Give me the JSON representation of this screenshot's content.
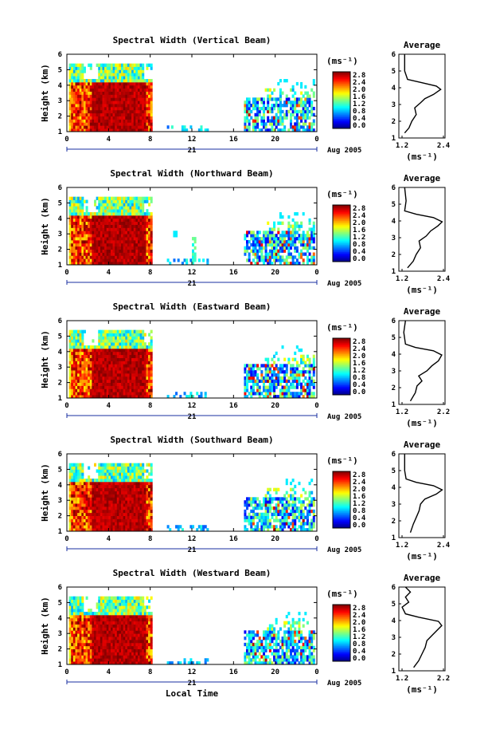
{
  "chart_data": [
    {
      "type": "heatmap",
      "title": "Spectral Width (Vertical Beam)",
      "ylabel": "Height (km)",
      "x_ticks": [
        "0",
        "4",
        "8",
        "12",
        "16",
        "20",
        "0"
      ],
      "y_ticks": [
        "1",
        "2",
        "3",
        "4",
        "5",
        "6"
      ],
      "xlim": [
        0,
        24
      ],
      "ylim": [
        1,
        6
      ],
      "date_day": "21",
      "date_label": "Aug 2005",
      "colorbar": {
        "unit_label": "(ms⁻¹)",
        "ticks": [
          "0.0",
          "0.4",
          "0.8",
          "1.2",
          "1.6",
          "2.0",
          "2.4",
          "2.8"
        ]
      },
      "average": {
        "title": "Average",
        "xlabel": "(ms⁻¹)",
        "x_ticks": [
          "1.2",
          "2.4"
        ],
        "xlim": [
          1.0,
          2.6
        ],
        "y_ticks": [
          "1",
          "2",
          "3",
          "4",
          "5",
          "6"
        ],
        "profile": [
          [
            1.2,
            1.3
          ],
          [
            1.35,
            1.6
          ],
          [
            1.45,
            2.0
          ],
          [
            1.6,
            2.4
          ],
          [
            1.55,
            2.8
          ],
          [
            1.75,
            3.1
          ],
          [
            1.9,
            3.35
          ],
          [
            2.2,
            3.6
          ],
          [
            2.45,
            3.9
          ],
          [
            2.3,
            4.1
          ],
          [
            1.8,
            4.3
          ],
          [
            1.3,
            4.5
          ],
          [
            1.2,
            5.0
          ],
          [
            1.2,
            6.0
          ]
        ]
      }
    },
    {
      "type": "heatmap",
      "title": "Spectral Width (Northward Beam)",
      "ylabel": "Height (km)",
      "x_ticks": [
        "0",
        "4",
        "8",
        "12",
        "16",
        "20",
        "0"
      ],
      "y_ticks": [
        "1",
        "2",
        "3",
        "4",
        "5",
        "6"
      ],
      "xlim": [
        0,
        24
      ],
      "ylim": [
        1,
        6
      ],
      "date_day": "21",
      "date_label": "Aug 2005",
      "colorbar": {
        "unit_label": "(ms⁻¹)",
        "ticks": [
          "0.0",
          "0.4",
          "0.8",
          "1.2",
          "1.6",
          "2.0",
          "2.4",
          "2.8"
        ]
      },
      "average": {
        "title": "Average",
        "xlabel": "(ms⁻¹)",
        "x_ticks": [
          "1.2",
          "2.4"
        ],
        "xlim": [
          1.0,
          2.6
        ],
        "y_ticks": [
          "1",
          "2",
          "3",
          "4",
          "5",
          "6"
        ],
        "profile": [
          [
            1.3,
            1.2
          ],
          [
            1.5,
            1.6
          ],
          [
            1.6,
            2.0
          ],
          [
            1.75,
            2.4
          ],
          [
            1.7,
            2.8
          ],
          [
            1.95,
            3.1
          ],
          [
            2.1,
            3.4
          ],
          [
            2.35,
            3.7
          ],
          [
            2.5,
            3.95
          ],
          [
            2.2,
            4.2
          ],
          [
            1.6,
            4.4
          ],
          [
            1.2,
            4.6
          ],
          [
            1.25,
            5.2
          ],
          [
            1.2,
            6.0
          ]
        ]
      }
    },
    {
      "type": "heatmap",
      "title": "Spectral Width (Eastward Beam)",
      "ylabel": "Height (km)",
      "x_ticks": [
        "0",
        "4",
        "8",
        "12",
        "16",
        "20",
        "0"
      ],
      "y_ticks": [
        "1",
        "2",
        "3",
        "4",
        "5",
        "6"
      ],
      "xlim": [
        0,
        24
      ],
      "ylim": [
        1,
        6
      ],
      "date_day": "21",
      "date_label": "Aug 2005",
      "colorbar": {
        "unit_label": "(ms⁻¹)",
        "ticks": [
          "0.0",
          "0.4",
          "0.8",
          "1.2",
          "1.6",
          "2.0",
          "2.4",
          "2.8"
        ]
      },
      "average": {
        "title": "Average",
        "xlabel": "(ms⁻¹)",
        "x_ticks": [
          "1.2",
          "2.2"
        ],
        "xlim": [
          1.0,
          2.4
        ],
        "y_ticks": [
          "1",
          "2",
          "3",
          "4",
          "5",
          "6"
        ],
        "profile": [
          [
            1.35,
            1.2
          ],
          [
            1.5,
            1.7
          ],
          [
            1.55,
            2.1
          ],
          [
            1.7,
            2.4
          ],
          [
            1.6,
            2.7
          ],
          [
            1.85,
            3.0
          ],
          [
            2.0,
            3.3
          ],
          [
            2.2,
            3.6
          ],
          [
            2.3,
            3.95
          ],
          [
            2.05,
            4.2
          ],
          [
            1.5,
            4.4
          ],
          [
            1.2,
            4.6
          ],
          [
            1.15,
            5.3
          ],
          [
            1.2,
            6.0
          ]
        ]
      }
    },
    {
      "type": "heatmap",
      "title": "Spectral Width (Southward Beam)",
      "ylabel": "Height (km)",
      "x_ticks": [
        "0",
        "4",
        "8",
        "12",
        "16",
        "20",
        "0"
      ],
      "y_ticks": [
        "1",
        "2",
        "3",
        "4",
        "5",
        "6"
      ],
      "xlim": [
        0,
        24
      ],
      "ylim": [
        1,
        6
      ],
      "date_day": "21",
      "date_label": "Aug 2005",
      "colorbar": {
        "unit_label": "(ms⁻¹)",
        "ticks": [
          "0.0",
          "0.4",
          "0.8",
          "1.2",
          "1.6",
          "2.0",
          "2.4",
          "2.8"
        ]
      },
      "average": {
        "title": "Average",
        "xlabel": "(ms⁻¹)",
        "x_ticks": [
          "1.2",
          "2.4"
        ],
        "xlim": [
          1.0,
          2.6
        ],
        "y_ticks": [
          "1",
          "2",
          "3",
          "4",
          "5",
          "6"
        ],
        "profile": [
          [
            1.4,
            1.3
          ],
          [
            1.5,
            1.8
          ],
          [
            1.6,
            2.2
          ],
          [
            1.7,
            2.6
          ],
          [
            1.75,
            3.0
          ],
          [
            1.9,
            3.3
          ],
          [
            2.3,
            3.6
          ],
          [
            2.5,
            3.85
          ],
          [
            2.2,
            4.1
          ],
          [
            1.6,
            4.3
          ],
          [
            1.25,
            4.5
          ],
          [
            1.2,
            5.0
          ],
          [
            1.2,
            6.0
          ]
        ]
      }
    },
    {
      "type": "heatmap",
      "title": "Spectral Width (Westward Beam)",
      "ylabel": "Height (km)",
      "xlabel": "Local Time",
      "x_ticks": [
        "0",
        "4",
        "8",
        "12",
        "16",
        "20",
        "0"
      ],
      "y_ticks": [
        "1",
        "2",
        "3",
        "4",
        "5",
        "6"
      ],
      "xlim": [
        0,
        24
      ],
      "ylim": [
        1,
        6
      ],
      "date_day": "21",
      "date_label": "Aug 2005",
      "colorbar": {
        "unit_label": "(ms⁻¹)",
        "ticks": [
          "0.0",
          "0.4",
          "0.8",
          "1.2",
          "1.6",
          "2.0",
          "2.4",
          "2.8"
        ]
      },
      "average": {
        "title": "Average",
        "xlabel": "(ms⁻¹)",
        "x_ticks": [
          "1.2",
          "2.2"
        ],
        "xlim": [
          1.0,
          2.4
        ],
        "y_ticks": [
          "1",
          "2",
          "3",
          "4",
          "5",
          "6"
        ],
        "profile": [
          [
            1.45,
            1.2
          ],
          [
            1.6,
            1.6
          ],
          [
            1.7,
            2.0
          ],
          [
            1.8,
            2.4
          ],
          [
            1.85,
            2.8
          ],
          [
            2.0,
            3.1
          ],
          [
            2.15,
            3.4
          ],
          [
            2.3,
            3.7
          ],
          [
            2.2,
            3.95
          ],
          [
            1.6,
            4.2
          ],
          [
            1.2,
            4.4
          ],
          [
            1.1,
            4.8
          ],
          [
            1.3,
            5.1
          ],
          [
            1.2,
            5.4
          ],
          [
            1.35,
            5.7
          ],
          [
            1.2,
            6.0
          ]
        ]
      }
    }
  ]
}
